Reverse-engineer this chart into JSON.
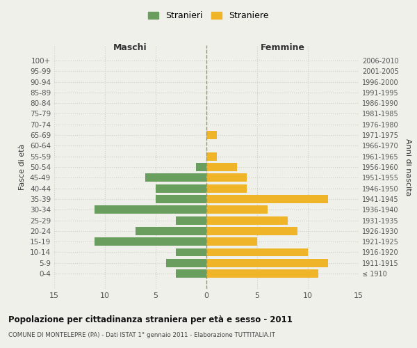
{
  "age_groups": [
    "100+",
    "95-99",
    "90-94",
    "85-89",
    "80-84",
    "75-79",
    "70-74",
    "65-69",
    "60-64",
    "55-59",
    "50-54",
    "45-49",
    "40-44",
    "35-39",
    "30-34",
    "25-29",
    "20-24",
    "15-19",
    "10-14",
    "5-9",
    "0-4"
  ],
  "birth_years": [
    "≤ 1910",
    "1911-1915",
    "1916-1920",
    "1921-1925",
    "1926-1930",
    "1931-1935",
    "1936-1940",
    "1941-1945",
    "1946-1950",
    "1951-1955",
    "1956-1960",
    "1961-1965",
    "1966-1970",
    "1971-1975",
    "1976-1980",
    "1981-1985",
    "1986-1990",
    "1991-1995",
    "1996-2000",
    "2001-2005",
    "2006-2010"
  ],
  "maschi": [
    0,
    0,
    0,
    0,
    0,
    0,
    0,
    0,
    0,
    0,
    1,
    6,
    5,
    5,
    11,
    3,
    7,
    11,
    3,
    4,
    3
  ],
  "femmine": [
    0,
    0,
    0,
    0,
    0,
    0,
    0,
    1,
    0,
    1,
    3,
    4,
    4,
    12,
    6,
    8,
    9,
    5,
    10,
    12,
    11
  ],
  "maschi_color": "#6a9e5e",
  "femmine_color": "#f0b429",
  "background_color": "#f0f0eb",
  "title": "Popolazione per cittadinanza straniera per età e sesso - 2011",
  "subtitle": "COMUNE DI MONTELEPRE (PA) - Dati ISTAT 1° gennaio 2011 - Elaborazione TUTTITALIA.IT",
  "xlabel_left": "Maschi",
  "xlabel_right": "Femmine",
  "ylabel_left": "Fasce di età",
  "ylabel_right": "Anni di nascita",
  "legend_maschi": "Stranieri",
  "legend_femmine": "Straniere",
  "xlim": 15,
  "grid_color": "#d0d0c8"
}
